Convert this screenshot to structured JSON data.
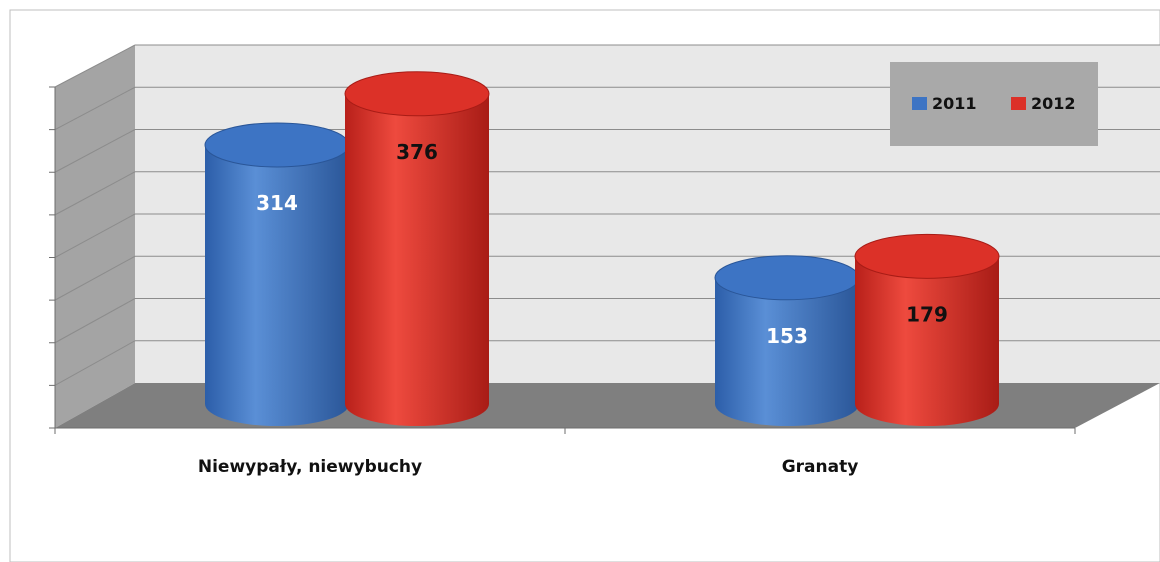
{
  "chart_data": {
    "type": "bar",
    "subtype": "3d-cylinder",
    "categories": [
      "Niewypały, niewybuchy",
      "Granaty"
    ],
    "series": [
      {
        "name": "2011",
        "values": [
          314,
          153
        ],
        "color": "#3d74c4"
      },
      {
        "name": "2012",
        "values": [
          376,
          179
        ],
        "color": "#dc3128"
      }
    ],
    "ylim": [
      0,
      400
    ],
    "grid": true,
    "legend_position": "top-right",
    "data_labels": true,
    "colors": {
      "wall": "#e8e8e8",
      "side_wall": "#a4a4a4",
      "floor": "#7f7f7f",
      "legend_bg": "#a9a9a9",
      "label_2011": "#ffffff",
      "label_2012": "#111111"
    }
  }
}
